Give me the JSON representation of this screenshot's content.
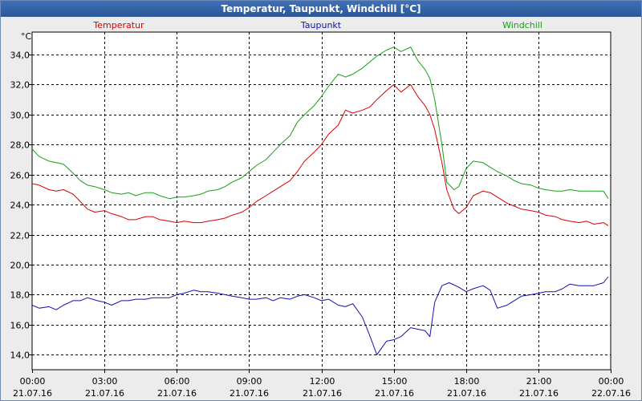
{
  "window": {
    "title": "Temperatur, Taupunkt, Windchill [°C]"
  },
  "chart_data": {
    "type": "line",
    "title": "Temperatur, Taupunkt, Windchill [°C]",
    "ylabel": "°C",
    "xlabel": "",
    "ylim": [
      13,
      35.5
    ],
    "yticks": [
      "14,0",
      "16,0",
      "18,0",
      "20,0",
      "22,0",
      "24,0",
      "26,0",
      "28,0",
      "30,0",
      "32,0",
      "34,0"
    ],
    "ytick_values": [
      14,
      16,
      18,
      20,
      22,
      24,
      26,
      28,
      30,
      32,
      34
    ],
    "xlim_hours": [
      0,
      24
    ],
    "xticks": [
      {
        "time": "00:00",
        "date": "21.07.16",
        "hour": 0
      },
      {
        "time": "03:00",
        "date": "21.07.16",
        "hour": 3
      },
      {
        "time": "06:00",
        "date": "21.07.16",
        "hour": 6
      },
      {
        "time": "09:00",
        "date": "21.07.16",
        "hour": 9
      },
      {
        "time": "12:00",
        "date": "21.07.16",
        "hour": 12
      },
      {
        "time": "15:00",
        "date": "21.07.16",
        "hour": 15
      },
      {
        "time": "18:00",
        "date": "21.07.16",
        "hour": 18
      },
      {
        "time": "21:00",
        "date": "21.07.16",
        "hour": 21
      },
      {
        "time": "00:00",
        "date": "22.07.16",
        "hour": 24
      }
    ],
    "grid": true,
    "series": [
      {
        "name": "Temperatur",
        "color": "#d80000",
        "x": [
          0,
          0.3,
          0.7,
          1,
          1.3,
          1.7,
          2,
          2.3,
          2.6,
          3,
          3.3,
          3.7,
          4,
          4.3,
          4.7,
          5,
          5.3,
          5.7,
          6,
          6.3,
          6.7,
          7,
          7.3,
          7.7,
          8,
          8.3,
          8.7,
          9,
          9.3,
          9.7,
          10,
          10.3,
          10.7,
          11,
          11.3,
          11.7,
          12,
          12.3,
          12.7,
          13,
          13.3,
          13.7,
          14,
          14.3,
          14.7,
          15,
          15.3,
          15.7,
          16,
          16.3,
          16.5,
          16.7,
          17,
          17.2,
          17.5,
          17.7,
          18,
          18.3,
          18.7,
          19,
          19.3,
          19.7,
          20,
          20.3,
          20.7,
          21,
          21.3,
          21.7,
          22,
          22.3,
          22.7,
          23,
          23.3,
          23.7,
          23.9
        ],
        "values": [
          25.4,
          25.3,
          25.0,
          24.9,
          25.0,
          24.7,
          24.2,
          23.7,
          23.5,
          23.6,
          23.4,
          23.2,
          23.0,
          23.0,
          23.2,
          23.2,
          23.0,
          22.9,
          22.8,
          22.9,
          22.8,
          22.8,
          22.9,
          23.0,
          23.1,
          23.3,
          23.5,
          23.8,
          24.2,
          24.6,
          24.9,
          25.2,
          25.6,
          26.2,
          26.9,
          27.5,
          28.0,
          28.7,
          29.3,
          30.3,
          30.1,
          30.3,
          30.5,
          31.0,
          31.6,
          32.0,
          31.5,
          32.0,
          31.2,
          30.6,
          30.0,
          29.0,
          26.8,
          25.0,
          23.7,
          23.4,
          23.8,
          24.6,
          24.9,
          24.8,
          24.5,
          24.1,
          23.9,
          23.7,
          23.6,
          23.5,
          23.3,
          23.2,
          23.0,
          22.9,
          22.8,
          22.9,
          22.7,
          22.8,
          22.6
        ]
      },
      {
        "name": "Taupunkt",
        "color": "#1010b0",
        "x": [
          0,
          0.3,
          0.7,
          1,
          1.3,
          1.7,
          2,
          2.3,
          2.7,
          3,
          3.3,
          3.7,
          4,
          4.3,
          4.7,
          5,
          5.3,
          5.7,
          6,
          6.3,
          6.7,
          7,
          7.3,
          7.7,
          8,
          8.3,
          8.7,
          9,
          9.3,
          9.7,
          10,
          10.3,
          10.7,
          11,
          11.3,
          11.7,
          12,
          12.3,
          12.7,
          13,
          13.3,
          13.7,
          14,
          14.3,
          14.7,
          15,
          15.3,
          15.7,
          16,
          16.3,
          16.5,
          16.7,
          17,
          17.3,
          17.7,
          18,
          18.3,
          18.7,
          19,
          19.3,
          19.7,
          20,
          20.3,
          20.7,
          21,
          21.3,
          21.7,
          22,
          22.3,
          22.7,
          23,
          23.3,
          23.7,
          23.9
        ],
        "values": [
          17.3,
          17.1,
          17.2,
          17.0,
          17.3,
          17.6,
          17.6,
          17.8,
          17.6,
          17.5,
          17.3,
          17.6,
          17.6,
          17.7,
          17.7,
          17.8,
          17.8,
          17.8,
          18.0,
          18.1,
          18.3,
          18.2,
          18.2,
          18.1,
          18.0,
          17.9,
          17.8,
          17.7,
          17.7,
          17.8,
          17.6,
          17.8,
          17.7,
          17.9,
          18.0,
          17.8,
          17.6,
          17.7,
          17.3,
          17.2,
          17.4,
          16.5,
          15.3,
          14.0,
          14.9,
          15.0,
          15.2,
          15.8,
          15.7,
          15.6,
          15.2,
          17.5,
          18.6,
          18.8,
          18.5,
          18.2,
          18.4,
          18.6,
          18.3,
          17.1,
          17.3,
          17.6,
          17.9,
          18.0,
          18.1,
          18.2,
          18.2,
          18.4,
          18.7,
          18.6,
          18.6,
          18.6,
          18.8,
          19.2
        ]
      },
      {
        "name": "Windchill",
        "color": "#16a016",
        "x": [
          0,
          0.3,
          0.7,
          1,
          1.3,
          1.7,
          2,
          2.3,
          2.6,
          3,
          3.3,
          3.7,
          4,
          4.3,
          4.7,
          5,
          5.3,
          5.7,
          6,
          6.3,
          6.7,
          7,
          7.3,
          7.7,
          8,
          8.3,
          8.7,
          9,
          9.3,
          9.7,
          10,
          10.3,
          10.7,
          11,
          11.3,
          11.7,
          12,
          12.3,
          12.7,
          13,
          13.3,
          13.7,
          14,
          14.3,
          14.7,
          15,
          15.3,
          15.7,
          16,
          16.3,
          16.5,
          16.7,
          17,
          17.2,
          17.5,
          17.7,
          18,
          18.3,
          18.7,
          19,
          19.3,
          19.7,
          20,
          20.3,
          20.7,
          21,
          21.3,
          21.7,
          22,
          22.3,
          22.7,
          23,
          23.3,
          23.7,
          23.9
        ],
        "values": [
          27.7,
          27.2,
          26.9,
          26.8,
          26.7,
          26.1,
          25.6,
          25.3,
          25.2,
          25.0,
          24.8,
          24.7,
          24.8,
          24.6,
          24.8,
          24.8,
          24.6,
          24.4,
          24.5,
          24.5,
          24.6,
          24.7,
          24.9,
          25.0,
          25.2,
          25.5,
          25.8,
          26.2,
          26.6,
          27.0,
          27.5,
          28.0,
          28.6,
          29.5,
          30.0,
          30.6,
          31.2,
          31.9,
          32.7,
          32.5,
          32.7,
          33.1,
          33.5,
          33.9,
          34.3,
          34.5,
          34.2,
          34.5,
          33.6,
          33.0,
          32.4,
          31.0,
          28.0,
          25.5,
          25.0,
          25.2,
          26.4,
          26.9,
          26.8,
          26.5,
          26.2,
          25.9,
          25.6,
          25.4,
          25.3,
          25.1,
          25.0,
          24.9,
          24.9,
          25.0,
          24.9,
          24.9,
          24.9,
          24.9,
          24.4
        ]
      }
    ]
  }
}
